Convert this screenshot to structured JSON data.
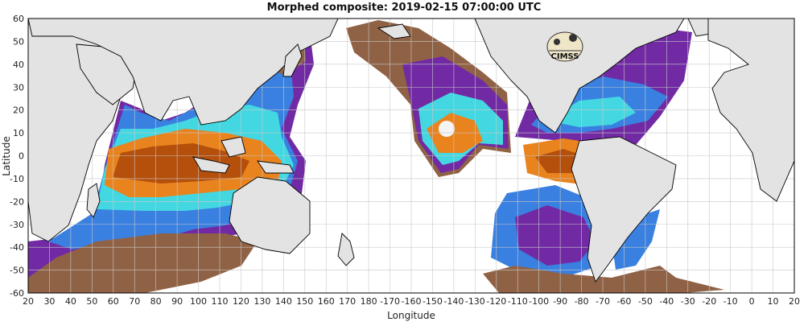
{
  "title": "Morphed composite: 2019-02-15 07:00:00 UTC",
  "x_axis": {
    "label": "Longitude",
    "ticks": [
      "20",
      "30",
      "40",
      "50",
      "60",
      "70",
      "80",
      "90",
      "100",
      "110",
      "120",
      "130",
      "140",
      "150",
      "160",
      "170",
      "180",
      "-170",
      "-160",
      "-150",
      "-140",
      "-130",
      "-120",
      "-110",
      "-100",
      "-90",
      "-80",
      "-70",
      "-60",
      "-50",
      "-40",
      "-30",
      "-20",
      "-10",
      "0",
      "10",
      "20"
    ]
  },
  "y_axis": {
    "label": "Latitude",
    "ticks": [
      "60",
      "50",
      "40",
      "30",
      "20",
      "10",
      "0",
      "-10",
      "-20",
      "-30",
      "-40",
      "-50",
      "-60"
    ]
  },
  "logo_text": "CIMSS",
  "colors": {
    "land": "#e3e3e3",
    "ocean_bg": "#ffffff",
    "dry": "#8b5a3c",
    "low": "#6a1fa0",
    "mid": "#2f7ae0",
    "moist": "#39d6e0",
    "high": "#e87d12",
    "very_high": "#b04600"
  }
}
